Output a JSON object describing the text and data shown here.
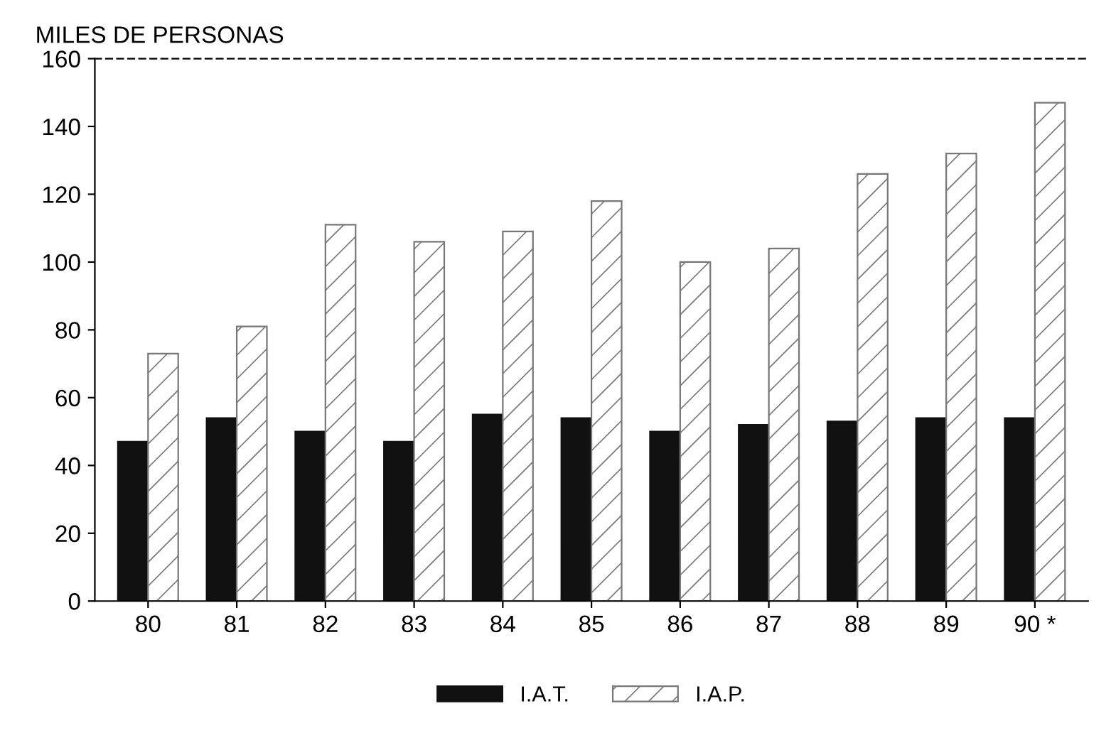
{
  "chart_data": {
    "type": "bar",
    "ylabel": "MILES DE PERSONAS",
    "categories": [
      "80",
      "81",
      "82",
      "83",
      "84",
      "85",
      "86",
      "87",
      "88",
      "89",
      "90 *"
    ],
    "series": [
      {
        "name": "I.A.T.",
        "color": "#111111",
        "values": [
          47,
          54,
          50,
          47,
          55,
          54,
          50,
          52,
          53,
          54,
          54
        ]
      },
      {
        "name": "I.A.P.",
        "color": "#777777",
        "values": [
          73,
          81,
          111,
          106,
          109,
          118,
          100,
          104,
          126,
          132,
          147
        ]
      }
    ],
    "ylim": [
      0,
      160
    ],
    "yticks": [
      0,
      20,
      40,
      60,
      80,
      100,
      120,
      140,
      160
    ],
    "grid": false,
    "legend": "bottom"
  }
}
